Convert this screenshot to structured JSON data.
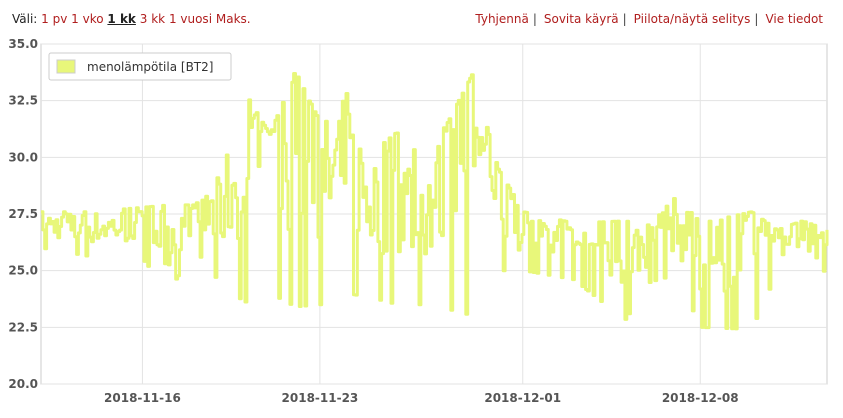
{
  "toolbar": {
    "range_label": "Väli:",
    "ranges": [
      "1 pv",
      "1 vko",
      "1 kk",
      "3 kk",
      "1 vuosi",
      "Maks."
    ],
    "selected_range": "1 kk",
    "actions": [
      "Tyhjennä",
      "Sovita käyrä",
      "Piilota/näytä selitys",
      "Vie tiedot"
    ]
  },
  "chart_data": {
    "type": "line",
    "title": "",
    "xlabel": "",
    "ylabel": "",
    "grid": true,
    "legend_position": "top-left",
    "ylim": [
      20.0,
      35.0
    ],
    "yticks": [
      "20.0",
      "22.5",
      "25.0",
      "27.5",
      "30.0",
      "32.5",
      "35.0"
    ],
    "xlim": [
      "2018-11-12",
      "2018-12-13"
    ],
    "xticks": [
      "2018-11-16",
      "2018-11-23",
      "2018-12-01",
      "2018-12-08"
    ],
    "series": [
      {
        "name": "menolämpötila [BT2]",
        "color": "#e8f77a",
        "style": "step",
        "envelope": [
          {
            "x": "2018-11-12",
            "low": 26.0,
            "high": 27.6
          },
          {
            "x": "2018-11-14",
            "low": 25.6,
            "high": 27.6
          },
          {
            "x": "2018-11-16",
            "low": 25.5,
            "high": 27.8
          },
          {
            "x": "2018-11-17",
            "low": 24.0,
            "high": 27.9
          },
          {
            "x": "2018-11-18",
            "low": 26.0,
            "high": 27.9
          },
          {
            "x": "2018-11-19",
            "low": 24.5,
            "high": 29.2
          },
          {
            "x": "2018-11-20",
            "low": 23.6,
            "high": 32.9
          },
          {
            "x": "2018-11-21",
            "low": 24.0,
            "high": 31.0
          },
          {
            "x": "2018-11-22",
            "low": 23.4,
            "high": 33.8
          },
          {
            "x": "2018-11-23",
            "low": 23.5,
            "high": 31.5
          },
          {
            "x": "2018-11-24",
            "low": 24.0,
            "high": 32.9
          },
          {
            "x": "2018-11-25",
            "low": 23.8,
            "high": 30.2
          },
          {
            "x": "2018-11-26",
            "low": 23.5,
            "high": 31.1
          },
          {
            "x": "2018-11-27",
            "low": 23.5,
            "high": 30.0
          },
          {
            "x": "2018-11-28",
            "low": 23.3,
            "high": 31.5
          },
          {
            "x": "2018-11-29",
            "low": 23.0,
            "high": 33.7
          },
          {
            "x": "2018-11-30",
            "low": 25.0,
            "high": 29.5
          },
          {
            "x": "2018-12-01",
            "low": 25.0,
            "high": 27.6
          },
          {
            "x": "2018-12-03",
            "low": 24.6,
            "high": 27.1
          },
          {
            "x": "2018-12-05",
            "low": 22.8,
            "high": 27.2
          },
          {
            "x": "2018-12-06",
            "low": 24.5,
            "high": 27.0
          },
          {
            "x": "2018-12-07",
            "low": 24.8,
            "high": 28.3
          },
          {
            "x": "2018-12-08",
            "low": 22.5,
            "high": 27.1
          },
          {
            "x": "2018-12-10",
            "low": 22.4,
            "high": 27.6
          },
          {
            "x": "2018-12-11",
            "low": 24.9,
            "high": 26.8
          },
          {
            "x": "2018-12-12",
            "low": 24.8,
            "high": 27.2
          },
          {
            "x": "2018-12-13",
            "low": 25.0,
            "high": 26.8
          }
        ]
      }
    ]
  }
}
